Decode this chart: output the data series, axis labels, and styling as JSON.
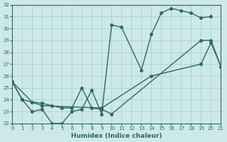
{
  "xlabel": "Humidex (Indice chaleur)",
  "xlim": [
    0,
    21
  ],
  "ylim": [
    22,
    32
  ],
  "xticks": [
    0,
    1,
    2,
    3,
    4,
    5,
    6,
    7,
    8,
    9,
    10,
    11,
    12,
    13,
    14,
    15,
    16,
    17,
    18,
    19,
    20,
    21
  ],
  "yticks": [
    22,
    23,
    24,
    25,
    26,
    27,
    28,
    29,
    30,
    31,
    32
  ],
  "bg_color": "#cce8e8",
  "grid_color": "#add4d4",
  "line_color": "#2a6b5a",
  "line1_x": [
    0,
    1,
    2,
    3,
    4,
    5,
    6,
    7,
    8,
    9,
    10,
    11,
    13,
    14,
    15,
    16,
    17,
    18,
    19,
    20
  ],
  "line1_y": [
    25.5,
    24.0,
    23.0,
    23.2,
    22.0,
    22.0,
    23.0,
    23.2,
    24.8,
    22.8,
    30.3,
    30.1,
    26.5,
    29.5,
    31.3,
    31.7,
    31.5,
    31.3,
    30.9,
    31.0
  ],
  "line2_x": [
    0,
    1,
    2,
    3,
    4,
    5,
    6,
    7,
    8,
    9,
    10,
    19,
    20,
    21
  ],
  "line2_y": [
    25.5,
    24.0,
    23.8,
    23.7,
    23.5,
    23.3,
    23.3,
    25.0,
    23.3,
    23.2,
    22.8,
    29.0,
    29.0,
    26.8
  ],
  "line3_x": [
    0,
    2,
    3,
    9,
    14,
    19,
    20,
    21
  ],
  "line3_y": [
    25.5,
    23.8,
    23.5,
    23.3,
    26.0,
    27.0,
    28.8,
    26.8
  ],
  "marker": "o",
  "markersize": 2.5,
  "linewidth": 1.0
}
